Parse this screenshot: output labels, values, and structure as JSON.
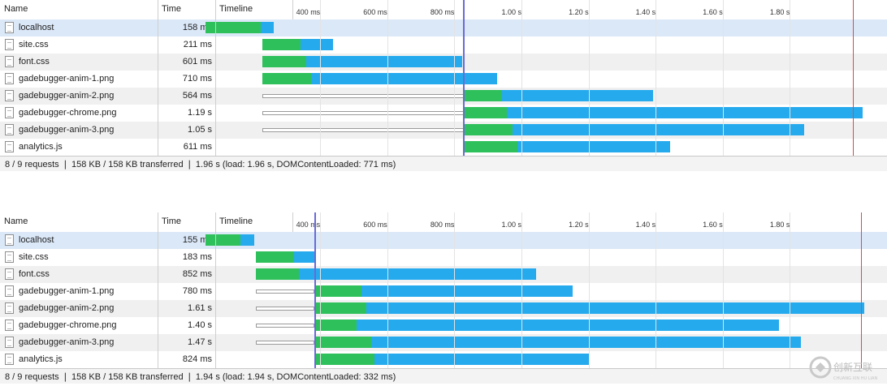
{
  "panels": [
    {
      "header": {
        "name": "Name",
        "time": "Time",
        "timeline": "Timeline"
      },
      "ticks": [
        "400 ms",
        "600 ms",
        "800 ms",
        "1.00 s",
        "1.20 s",
        "1.40 s",
        "1.60 s",
        "1.80 s"
      ],
      "rows": [
        {
          "name": "localhost",
          "time": "158 ms",
          "wait_start": null,
          "start": 0.055,
          "lat_end": 0.22,
          "end": 0.26
        },
        {
          "name": "site.css",
          "time": "211 ms",
          "wait_start": null,
          "start": 0.225,
          "lat_end": 0.34,
          "end": 0.435
        },
        {
          "name": "font.css",
          "time": "601 ms",
          "wait_start": null,
          "start": 0.225,
          "lat_end": 0.355,
          "end": 0.82
        },
        {
          "name": "gadebugger-anim-1.png",
          "time": "710 ms",
          "wait_start": null,
          "start": 0.225,
          "lat_end": 0.37,
          "end": 0.925
        },
        {
          "name": "gadebugger-anim-2.png",
          "time": "564 ms",
          "wait_start": 0.225,
          "start": 0.825,
          "lat_end": 0.94,
          "end": 1.39
        },
        {
          "name": "gadebugger-chrome.png",
          "time": "1.19 s",
          "wait_start": 0.225,
          "start": 0.825,
          "lat_end": 0.955,
          "end": 2.015
        },
        {
          "name": "gadebugger-anim-3.png",
          "time": "1.05 s",
          "wait_start": 0.225,
          "start": 0.825,
          "lat_end": 0.97,
          "end": 1.84
        },
        {
          "name": "analytics.js",
          "time": "611 ms",
          "wait_start": null,
          "start": 0.825,
          "lat_end": 0.985,
          "end": 1.44
        }
      ],
      "dcl_s": 0.823,
      "load_s": 1.985,
      "status": "8 / 9 requests ❘ 158 KB / 158 KB transferred ❘ 1.96 s (load: 1.96 s, DOMContentLoaded: 771 ms)"
    },
    {
      "header": {
        "name": "Name",
        "time": "Time",
        "timeline": "Timeline"
      },
      "ticks": [
        "400 ms",
        "600 ms",
        "800 ms",
        "1.00 s",
        "1.20 s",
        "1.40 s",
        "1.60 s",
        "1.80 s"
      ],
      "rows": [
        {
          "name": "localhost",
          "time": "155 ms",
          "wait_start": null,
          "start": 0.055,
          "lat_end": 0.16,
          "end": 0.2
        },
        {
          "name": "site.css",
          "time": "183 ms",
          "wait_start": null,
          "start": 0.205,
          "lat_end": 0.32,
          "end": 0.38
        },
        {
          "name": "font.css",
          "time": "852 ms",
          "wait_start": null,
          "start": 0.205,
          "lat_end": 0.335,
          "end": 1.04
        },
        {
          "name": "gadebugger-anim-1.png",
          "time": "780 ms",
          "wait_start": 0.205,
          "start": 0.38,
          "lat_end": 0.52,
          "end": 1.15
        },
        {
          "name": "gadebugger-anim-2.png",
          "time": "1.61 s",
          "wait_start": 0.205,
          "start": 0.38,
          "lat_end": 0.535,
          "end": 2.02
        },
        {
          "name": "gadebugger-chrome.png",
          "time": "1.40 s",
          "wait_start": 0.205,
          "start": 0.38,
          "lat_end": 0.505,
          "end": 1.765
        },
        {
          "name": "gadebugger-anim-3.png",
          "time": "1.47 s",
          "wait_start": 0.205,
          "start": 0.38,
          "lat_end": 0.55,
          "end": 1.83
        },
        {
          "name": "analytics.js",
          "time": "824 ms",
          "wait_start": null,
          "start": 0.38,
          "lat_end": 0.56,
          "end": 1.2
        }
      ],
      "dcl_s": 0.381,
      "load_s": 2.01,
      "status": "8 / 9 requests ❘ 158 KB / 158 KB transferred ❘ 1.94 s (load: 1.94 s, DOMContentLoaded: 332 ms)"
    }
  ],
  "colors": {
    "latency": "#2ec05a",
    "download": "#26aaee",
    "dom_content_loaded": "#6a6ad8",
    "load": "#e04848"
  },
  "logo": {
    "text": "创新互联",
    "subtext": "CHUANG XIN HU LIAN"
  }
}
